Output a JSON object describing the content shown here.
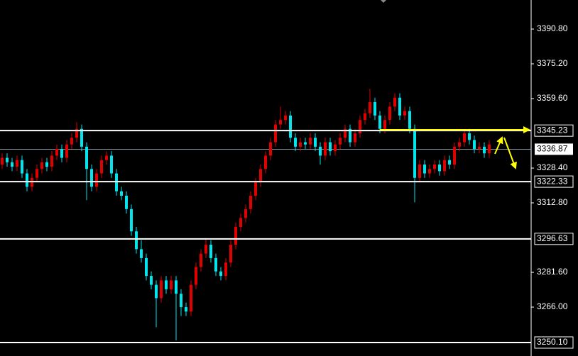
{
  "chart_data": {
    "type": "candlestick",
    "up_color": "#e00000",
    "down_color": "#00e5ee",
    "ylim": [
      3244.05,
      3403.85
    ],
    "yticks": [
      {
        "value": 3390.8,
        "label": "3390.80"
      },
      {
        "value": 3375.2,
        "label": "3375.20"
      },
      {
        "value": 3359.6,
        "label": "3359.60"
      },
      {
        "value": 3328.4,
        "label": "3328.40"
      },
      {
        "value": 3312.8,
        "label": "3312.80"
      },
      {
        "value": 3281.6,
        "label": "3281.60"
      },
      {
        "value": 3266,
        "label": "3266.00"
      }
    ],
    "levels": [
      {
        "value": 3345.23,
        "label": "3345.23"
      },
      {
        "value": 3322.33,
        "label": "3322.33"
      },
      {
        "value": 3296.63,
        "label": "3296.63"
      },
      {
        "value": 3250.1,
        "label": "3250.10"
      }
    ],
    "last_price": {
      "value": 3336.87,
      "label": "3336.87"
    },
    "candles": [
      [
        3330,
        3335,
        3328,
        3333
      ],
      [
        3333,
        3335,
        3329,
        3331
      ],
      [
        3331,
        3333,
        3327,
        3329
      ],
      [
        3329,
        3334,
        3327,
        3332
      ],
      [
        3332,
        3334,
        3324,
        3326
      ],
      [
        3326,
        3328,
        3318,
        3320
      ],
      [
        3320,
        3326,
        3318,
        3324
      ],
      [
        3324,
        3330,
        3322,
        3328
      ],
      [
        3328,
        3333,
        3326,
        3331
      ],
      [
        3331,
        3333,
        3327,
        3329
      ],
      [
        3329,
        3336,
        3327,
        3334
      ],
      [
        3334,
        3339,
        3332,
        3337
      ],
      [
        3337,
        3339,
        3331,
        3333
      ],
      [
        3333,
        3341,
        3331,
        3339
      ],
      [
        3339,
        3344,
        3337,
        3342
      ],
      [
        3342,
        3349,
        3340,
        3346
      ],
      [
        3346,
        3348,
        3336,
        3338
      ],
      [
        3338,
        3340,
        3314,
        3328
      ],
      [
        3328,
        3330,
        3318,
        3320
      ],
      [
        3320,
        3328,
        3318,
        3326
      ],
      [
        3326,
        3334,
        3324,
        3332
      ],
      [
        3332,
        3336,
        3330,
        3334
      ],
      [
        3334,
        3336,
        3324,
        3326
      ],
      [
        3326,
        3328,
        3316,
        3318
      ],
      [
        3318,
        3320,
        3314,
        3316
      ],
      [
        3316,
        3318,
        3308,
        3310
      ],
      [
        3310,
        3312,
        3298,
        3300
      ],
      [
        3300,
        3302,
        3290,
        3292
      ],
      [
        3292,
        3296,
        3286,
        3288
      ],
      [
        3288,
        3290,
        3278,
        3280
      ],
      [
        3280,
        3282,
        3274,
        3276
      ],
      [
        3276,
        3278,
        3257,
        3270
      ],
      [
        3270,
        3280,
        3268,
        3278
      ],
      [
        3278,
        3280,
        3272,
        3274
      ],
      [
        3274,
        3280,
        3272,
        3278
      ],
      [
        3278,
        3280,
        3251,
        3272
      ],
      [
        3272,
        3274,
        3262,
        3266
      ],
      [
        3266,
        3268,
        3262,
        3264
      ],
      [
        3264,
        3278,
        3262,
        3276
      ],
      [
        3276,
        3286,
        3274,
        3284
      ],
      [
        3284,
        3292,
        3282,
        3290
      ],
      [
        3290,
        3297,
        3288,
        3294
      ],
      [
        3294,
        3296,
        3286,
        3288
      ],
      [
        3288,
        3290,
        3280,
        3282
      ],
      [
        3282,
        3284,
        3278,
        3280
      ],
      [
        3280,
        3288,
        3278,
        3286
      ],
      [
        3286,
        3296,
        3284,
        3294
      ],
      [
        3294,
        3304,
        3292,
        3302
      ],
      [
        3302,
        3308,
        3300,
        3306
      ],
      [
        3306,
        3312,
        3304,
        3310
      ],
      [
        3310,
        3318,
        3308,
        3316
      ],
      [
        3316,
        3324,
        3314,
        3322
      ],
      [
        3322,
        3330,
        3320,
        3328
      ],
      [
        3328,
        3336,
        3326,
        3334
      ],
      [
        3334,
        3342,
        3332,
        3340
      ],
      [
        3340,
        3350,
        3338,
        3348
      ],
      [
        3348,
        3356,
        3346,
        3350
      ],
      [
        3350,
        3354,
        3348,
        3352
      ],
      [
        3352,
        3354,
        3340,
        3342
      ],
      [
        3342,
        3344,
        3336,
        3338
      ],
      [
        3338,
        3342,
        3336,
        3340
      ],
      [
        3340,
        3342,
        3337,
        3339
      ],
      [
        3339,
        3344,
        3337,
        3342
      ],
      [
        3342,
        3344,
        3336,
        3338
      ],
      [
        3338,
        3340,
        3330,
        3334
      ],
      [
        3334,
        3342,
        3332,
        3340
      ],
      [
        3340,
        3342,
        3334,
        3336
      ],
      [
        3336,
        3341,
        3334,
        3339
      ],
      [
        3339,
        3344,
        3337,
        3342
      ],
      [
        3342,
        3348,
        3340,
        3346
      ],
      [
        3346,
        3348,
        3338,
        3340
      ],
      [
        3340,
        3346,
        3338,
        3344
      ],
      [
        3344,
        3352,
        3342,
        3350
      ],
      [
        3350,
        3355,
        3348,
        3353
      ],
      [
        3353,
        3364,
        3351,
        3358
      ],
      [
        3358,
        3360,
        3350,
        3352
      ],
      [
        3352,
        3354,
        3344,
        3346
      ],
      [
        3346,
        3352,
        3344,
        3350
      ],
      [
        3350,
        3358,
        3348,
        3356
      ],
      [
        3356,
        3362,
        3354,
        3360
      ],
      [
        3360,
        3362,
        3350,
        3352
      ],
      [
        3352,
        3356,
        3350,
        3354
      ],
      [
        3354,
        3356,
        3344,
        3346
      ],
      [
        3346,
        3348,
        3313,
        3324
      ],
      [
        3324,
        3332,
        3322,
        3330
      ],
      [
        3330,
        3332,
        3324,
        3326
      ],
      [
        3326,
        3330,
        3324,
        3328
      ],
      [
        3328,
        3332,
        3326,
        3330
      ],
      [
        3330,
        3332,
        3325,
        3327
      ],
      [
        3327,
        3334,
        3325,
        3332
      ],
      [
        3332,
        3334,
        3328,
        3330
      ],
      [
        3330,
        3340,
        3328,
        3338
      ],
      [
        3338,
        3342,
        3336,
        3340
      ],
      [
        3340,
        3346,
        3338,
        3344
      ],
      [
        3344,
        3346,
        3339,
        3341
      ],
      [
        3341,
        3343,
        3335,
        3337
      ],
      [
        3337,
        3340,
        3335,
        3338
      ],
      [
        3338,
        3340,
        3333,
        3335
      ],
      [
        3335,
        3341,
        3333,
        3339
      ]
    ]
  }
}
